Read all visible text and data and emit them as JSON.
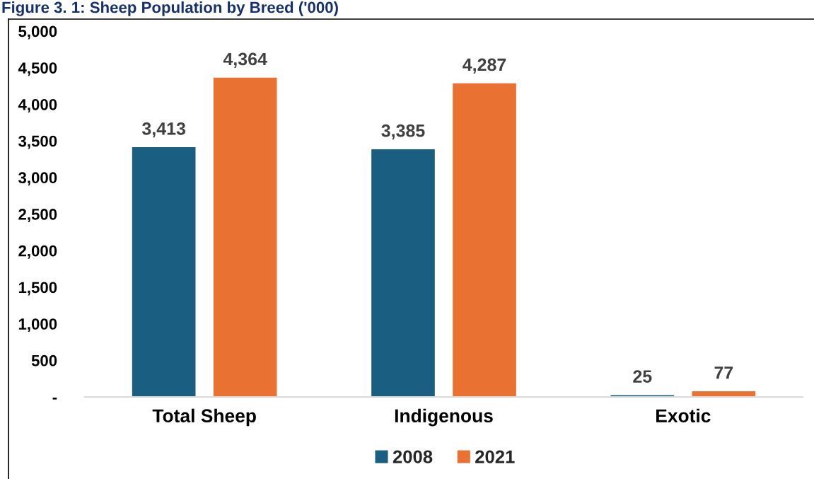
{
  "chart_data": {
    "type": "bar",
    "title": "Figure 3. 1: Sheep Population by Breed ('000)",
    "categories": [
      "Total Sheep",
      "Indigenous",
      "Exotic"
    ],
    "series": [
      {
        "name": "2008",
        "color": "#1a5f82",
        "values": [
          3413,
          3385,
          25
        ]
      },
      {
        "name": "2021",
        "color": "#e97132",
        "values": [
          4364,
          4287,
          77
        ]
      }
    ],
    "ylim": [
      0,
      5000
    ],
    "yticks": [
      {
        "value": 0,
        "label": "-"
      },
      {
        "value": 500,
        "label": "500"
      },
      {
        "value": 1000,
        "label": "1,000"
      },
      {
        "value": 1500,
        "label": "1,500"
      },
      {
        "value": 2000,
        "label": "2,000"
      },
      {
        "value": 2500,
        "label": "2,500"
      },
      {
        "value": 3000,
        "label": "3,000"
      },
      {
        "value": 3500,
        "label": "3,500"
      },
      {
        "value": 4000,
        "label": "4,000"
      },
      {
        "value": 4500,
        "label": "4,500"
      },
      {
        "value": 5000,
        "label": "5,000"
      }
    ],
    "value_labels": [
      [
        "3,413",
        "3,385",
        "25"
      ],
      [
        "4,364",
        "4,287",
        "77"
      ]
    ],
    "grid": false,
    "legend": "bottom"
  }
}
